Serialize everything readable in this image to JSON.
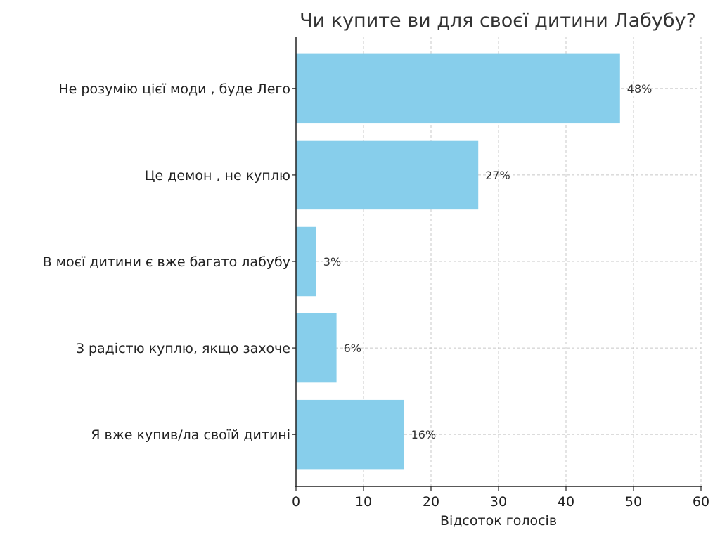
{
  "chart_data": {
    "type": "bar",
    "orientation": "horizontal",
    "title": "Чи купите ви для своєї дитини Лабубу?",
    "xlabel": "Відсоток голосів",
    "ylabel": "",
    "categories": [
      "Не розумію цієї моди , буде Лего",
      "Це демон , не куплю",
      "В моєї дитини є вже багато лабубу",
      "З радістю куплю, якщо захоче",
      "Я вже купив/ла своїй дитині"
    ],
    "values": [
      48,
      27,
      3,
      6,
      16
    ],
    "value_labels": [
      "48%",
      "27%",
      "3%",
      "6%",
      "16%"
    ],
    "xlim": [
      0,
      60
    ],
    "xticks": [
      "0",
      "10",
      "20",
      "30",
      "40",
      "50",
      "60"
    ],
    "grid": true,
    "bar_color": "#87ceeb"
  }
}
